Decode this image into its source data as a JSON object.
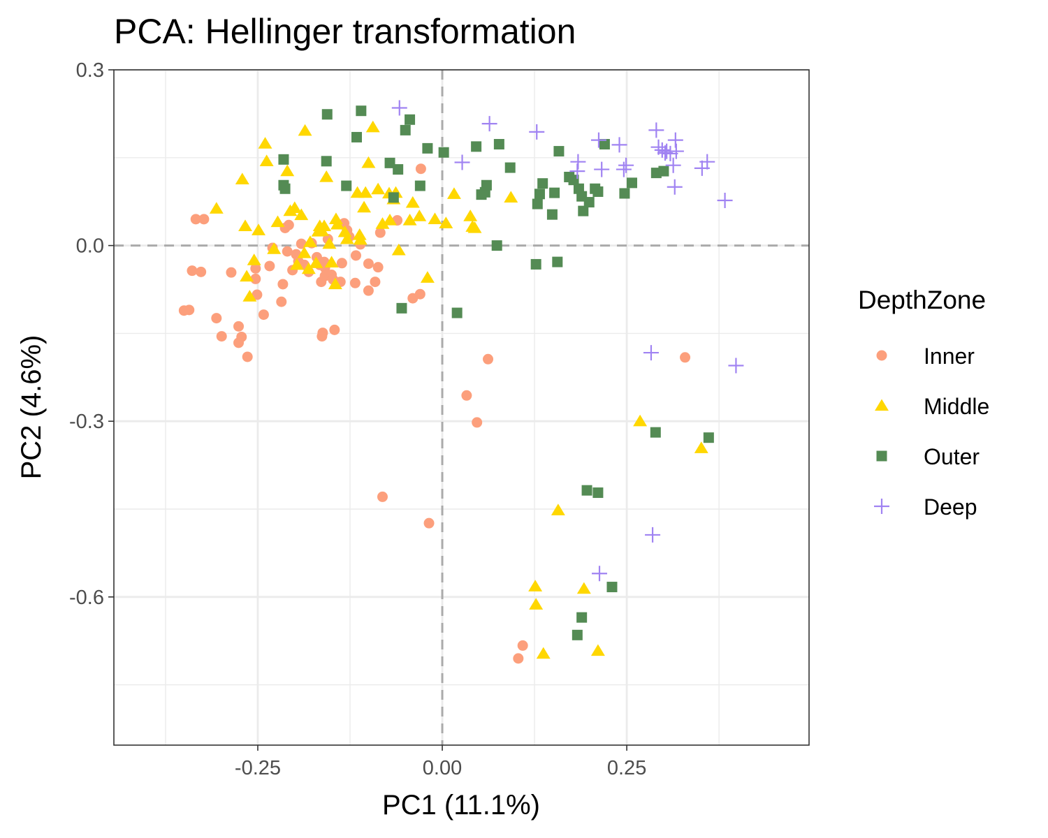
{
  "chart_data": {
    "type": "scatter",
    "title": "PCA: Hellinger transformation",
    "xlabel": "PC1 (11.1%)",
    "ylabel": "PC2 (4.6%)",
    "xlim": [
      -0.445,
      0.497
    ],
    "ylim": [
      -0.853,
      0.3
    ],
    "x_major_ticks": [
      -0.25,
      0.0,
      0.25
    ],
    "x_tick_labels": [
      "-0.25",
      "0.00",
      "0.25"
    ],
    "x_minor_ticks": [
      -0.375,
      -0.125,
      0.125,
      0.375
    ],
    "y_major_ticks": [
      0.3,
      0.0,
      -0.3,
      -0.6
    ],
    "y_tick_labels": [
      "0.3",
      "0.0",
      "-0.3",
      "-0.6"
    ],
    "y_minor_ticks": [
      0.15,
      -0.15,
      -0.45,
      -0.75
    ],
    "grid": true,
    "reference_lines": {
      "x": 0,
      "y": 0,
      "style": "dashed"
    },
    "legend": {
      "title": "DepthZone",
      "position": "right"
    },
    "series": [
      {
        "name": "Inner",
        "shape": "circle",
        "color": "#FC9F7C",
        "points": [
          [
            -0.334,
            0.045
          ],
          [
            -0.323,
            0.045
          ],
          [
            -0.339,
            -0.043
          ],
          [
            -0.327,
            -0.045
          ],
          [
            -0.35,
            -0.111
          ],
          [
            -0.343,
            -0.11
          ],
          [
            -0.306,
            -0.124
          ],
          [
            -0.299,
            -0.155
          ],
          [
            -0.286,
            -0.046
          ],
          [
            -0.276,
            -0.138
          ],
          [
            -0.272,
            -0.156
          ],
          [
            -0.276,
            -0.166
          ],
          [
            -0.264,
            -0.19
          ],
          [
            -0.253,
            -0.039
          ],
          [
            -0.253,
            -0.057
          ],
          [
            -0.251,
            -0.084
          ],
          [
            -0.242,
            -0.118
          ],
          [
            -0.234,
            -0.035
          ],
          [
            -0.23,
            -0.004
          ],
          [
            -0.218,
            -0.096
          ],
          [
            -0.216,
            -0.066
          ],
          [
            -0.213,
            0.03
          ],
          [
            -0.21,
            -0.01
          ],
          [
            -0.208,
            0.035
          ],
          [
            -0.203,
            -0.042
          ],
          [
            -0.198,
            -0.015
          ],
          [
            -0.195,
            -0.027
          ],
          [
            -0.191,
            0.003
          ],
          [
            -0.187,
            -0.033
          ],
          [
            -0.181,
            -0.045
          ],
          [
            -0.177,
            0.004
          ],
          [
            -0.17,
            -0.02
          ],
          [
            -0.166,
            -0.033
          ],
          [
            -0.164,
            -0.062
          ],
          [
            -0.162,
            -0.149
          ],
          [
            -0.163,
            -0.155
          ],
          [
            -0.16,
            -0.028
          ],
          [
            -0.159,
            -0.038
          ],
          [
            -0.159,
            -0.052
          ],
          [
            -0.155,
            0.011
          ],
          [
            -0.15,
            -0.05
          ],
          [
            -0.148,
            -0.058
          ],
          [
            -0.146,
            -0.144
          ],
          [
            -0.143,
            -0.064
          ],
          [
            -0.138,
            -0.062
          ],
          [
            -0.136,
            -0.03
          ],
          [
            -0.133,
            0.038
          ],
          [
            -0.129,
            0.026
          ],
          [
            -0.126,
            0.015
          ],
          [
            -0.118,
            -0.064
          ],
          [
            -0.117,
            -0.017
          ],
          [
            -0.111,
            0.002
          ],
          [
            -0.1,
            -0.031
          ],
          [
            -0.1,
            -0.077
          ],
          [
            -0.091,
            -0.062
          ],
          [
            -0.087,
            -0.037
          ],
          [
            -0.084,
            0.022
          ],
          [
            -0.061,
            0.043
          ],
          [
            -0.04,
            -0.09
          ],
          [
            -0.03,
            -0.083
          ],
          [
            -0.029,
            0.131
          ],
          [
            0.033,
            -0.256
          ],
          [
            0.047,
            -0.302
          ],
          [
            0.062,
            -0.194
          ],
          [
            -0.081,
            -0.429
          ],
          [
            -0.018,
            -0.474
          ],
          [
            0.109,
            -0.683
          ],
          [
            0.103,
            -0.705
          ],
          [
            0.329,
            -0.191
          ]
        ]
      },
      {
        "name": "Middle",
        "shape": "triangle",
        "color": "#FFD700",
        "points": [
          [
            -0.306,
            0.063
          ],
          [
            -0.271,
            0.113
          ],
          [
            -0.267,
            0.033
          ],
          [
            -0.265,
            -0.053
          ],
          [
            -0.261,
            -0.087
          ],
          [
            -0.255,
            -0.025
          ],
          [
            -0.249,
            0.026
          ],
          [
            -0.24,
            0.174
          ],
          [
            -0.238,
            0.144
          ],
          [
            -0.228,
            -0.006
          ],
          [
            -0.223,
            0.04
          ],
          [
            -0.21,
            0.127
          ],
          [
            -0.206,
            0.059
          ],
          [
            -0.2,
            0.064
          ],
          [
            -0.197,
            -0.033
          ],
          [
            -0.191,
            0.052
          ],
          [
            -0.187,
            -0.013
          ],
          [
            -0.186,
            0.196
          ],
          [
            -0.181,
            -0.04
          ],
          [
            -0.179,
            0.006
          ],
          [
            -0.171,
            -0.03
          ],
          [
            -0.168,
            0.024
          ],
          [
            -0.166,
            0.033
          ],
          [
            -0.163,
            0.025
          ],
          [
            -0.16,
            0.033
          ],
          [
            -0.157,
            0.117
          ],
          [
            -0.153,
            0.003
          ],
          [
            -0.15,
            -0.029
          ],
          [
            -0.145,
            -0.066
          ],
          [
            -0.144,
            0.045
          ],
          [
            -0.142,
            0.036
          ],
          [
            -0.132,
            0.023
          ],
          [
            -0.129,
            0.011
          ],
          [
            -0.115,
            0.09
          ],
          [
            -0.112,
            0.018
          ],
          [
            -0.111,
            0.01
          ],
          [
            -0.106,
            0.065
          ],
          [
            -0.104,
            0.09
          ],
          [
            -0.1,
            0.141
          ],
          [
            -0.094,
            0.202
          ],
          [
            -0.087,
            0.096
          ],
          [
            -0.081,
            0.037
          ],
          [
            -0.072,
            0.089
          ],
          [
            -0.071,
            0.043
          ],
          [
            -0.066,
            0.079
          ],
          [
            -0.063,
            0.09
          ],
          [
            -0.059,
            -0.008
          ],
          [
            -0.044,
            0.043
          ],
          [
            -0.04,
            0.073
          ],
          [
            -0.031,
            0.05
          ],
          [
            -0.02,
            -0.055
          ],
          [
            -0.01,
            0.045
          ],
          [
            0.005,
            0.038
          ],
          [
            0.016,
            0.088
          ],
          [
            0.038,
            0.05
          ],
          [
            0.041,
            0.032
          ],
          [
            0.044,
            0.03
          ],
          [
            0.093,
            0.082
          ],
          [
            0.268,
            -0.3
          ],
          [
            0.351,
            -0.346
          ],
          [
            0.157,
            -0.452
          ],
          [
            0.126,
            -0.582
          ],
          [
            0.127,
            -0.613
          ],
          [
            0.137,
            -0.697
          ],
          [
            0.192,
            -0.586
          ],
          [
            0.211,
            -0.692
          ]
        ]
      },
      {
        "name": "Outer",
        "shape": "square",
        "color": "#548B54",
        "points": [
          [
            -0.215,
            0.147
          ],
          [
            -0.215,
            0.103
          ],
          [
            -0.213,
            0.097
          ],
          [
            -0.157,
            0.144
          ],
          [
            -0.156,
            0.224
          ],
          [
            -0.13,
            0.102
          ],
          [
            -0.116,
            0.185
          ],
          [
            -0.11,
            0.23
          ],
          [
            -0.071,
            0.141
          ],
          [
            -0.066,
            0.082
          ],
          [
            -0.06,
            0.13
          ],
          [
            -0.044,
            0.215
          ],
          [
            -0.05,
            0.197
          ],
          [
            -0.03,
            0.102
          ],
          [
            -0.02,
            0.166
          ],
          [
            0.002,
            0.159
          ],
          [
            0.02,
            -0.115
          ],
          [
            0.046,
            0.169
          ],
          [
            0.053,
            0.087
          ],
          [
            0.058,
            0.091
          ],
          [
            0.06,
            0.103
          ],
          [
            0.074,
            0.0
          ],
          [
            0.077,
            0.173
          ],
          [
            0.092,
            0.133
          ],
          [
            0.127,
            -0.032
          ],
          [
            0.129,
            0.071
          ],
          [
            0.132,
            0.088
          ],
          [
            0.136,
            0.106
          ],
          [
            0.149,
            0.053
          ],
          [
            0.152,
            0.09
          ],
          [
            0.156,
            -0.028
          ],
          [
            0.158,
            0.161
          ],
          [
            0.172,
            0.117
          ],
          [
            0.178,
            0.112
          ],
          [
            0.185,
            0.097
          ],
          [
            0.189,
            0.084
          ],
          [
            0.191,
            0.059
          ],
          [
            0.199,
            0.074
          ],
          [
            0.207,
            0.097
          ],
          [
            0.211,
            0.092
          ],
          [
            0.22,
            0.173
          ],
          [
            0.247,
            0.089
          ],
          [
            0.257,
            0.107
          ],
          [
            0.29,
            0.124
          ],
          [
            0.3,
            0.127
          ],
          [
            0.289,
            -0.319
          ],
          [
            0.361,
            -0.328
          ],
          [
            0.196,
            -0.418
          ],
          [
            0.211,
            -0.422
          ],
          [
            0.23,
            -0.583
          ],
          [
            0.189,
            -0.635
          ],
          [
            0.183,
            -0.665
          ],
          [
            -0.055,
            -0.107
          ]
        ]
      },
      {
        "name": "Deep",
        "shape": "plus",
        "color": "#A083F2",
        "points": [
          [
            -0.058,
            0.235
          ],
          [
            0.027,
            0.142
          ],
          [
            0.064,
            0.208
          ],
          [
            0.128,
            0.194
          ],
          [
            0.183,
            0.127
          ],
          [
            0.184,
            0.143
          ],
          [
            0.212,
            0.18
          ],
          [
            0.216,
            0.13
          ],
          [
            0.24,
            0.172
          ],
          [
            0.246,
            0.13
          ],
          [
            0.249,
            0.137
          ],
          [
            0.29,
            0.197
          ],
          [
            0.293,
            0.168
          ],
          [
            0.298,
            0.163
          ],
          [
            0.302,
            0.158
          ],
          [
            0.304,
            0.161
          ],
          [
            0.309,
            0.157
          ],
          [
            0.317,
            0.161
          ],
          [
            0.316,
            0.18
          ],
          [
            0.313,
            0.137
          ],
          [
            0.315,
            0.1
          ],
          [
            0.352,
            0.132
          ],
          [
            0.359,
            0.143
          ],
          [
            0.383,
            0.077
          ],
          [
            0.283,
            -0.183
          ],
          [
            0.398,
            -0.205
          ],
          [
            0.285,
            -0.494
          ],
          [
            0.213,
            -0.56
          ]
        ]
      }
    ]
  }
}
